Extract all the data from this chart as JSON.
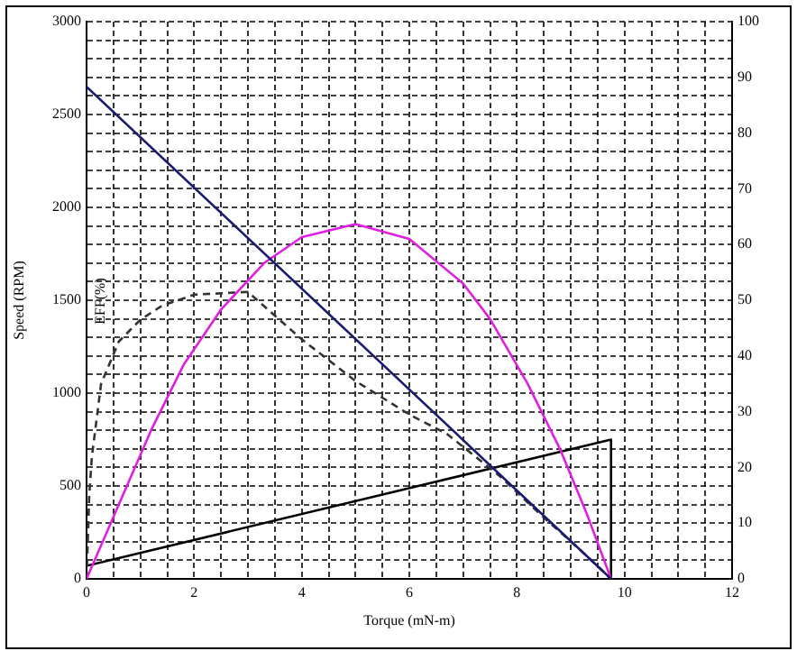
{
  "chart_data": {
    "type": "line",
    "xlabel": "Torque (mN-m)",
    "ylabel": "Speed (RPM)",
    "annotations": [
      "EFF(%)"
    ],
    "xlim": [
      0,
      12
    ],
    "xticks": [
      0,
      {
        "value": 0.5,
        "label": null
      },
      {
        "value": 1,
        "label": null
      },
      {
        "value": 1.5,
        "label": null
      },
      2,
      {
        "value": 2.5,
        "label": null
      },
      {
        "value": 3,
        "label": null
      },
      {
        "value": 3.5,
        "label": null
      },
      4,
      {
        "value": 4.5,
        "label": null
      },
      {
        "value": 5,
        "label": null
      },
      {
        "value": 5.5,
        "label": null
      },
      6,
      {
        "value": 6.5,
        "label": null
      },
      {
        "value": 7,
        "label": null
      },
      {
        "value": 7.5,
        "label": null
      },
      8,
      {
        "value": 8.5,
        "label": null
      },
      {
        "value": 9,
        "label": null
      },
      {
        "value": 9.5,
        "label": null
      },
      10,
      {
        "value": 10.5,
        "label": null
      },
      {
        "value": 11,
        "label": null
      },
      {
        "value": 11.5,
        "label": null
      },
      12
    ],
    "ylim": [
      0,
      3000
    ],
    "yticks": [
      0,
      {
        "value": 100,
        "label": null
      },
      {
        "value": 200,
        "label": null
      },
      {
        "value": 300,
        "label": null
      },
      {
        "value": 400,
        "label": null
      },
      500,
      {
        "value": 600,
        "label": null
      },
      {
        "value": 700,
        "label": null
      },
      {
        "value": 800,
        "label": null
      },
      {
        "value": 900,
        "label": null
      },
      1000,
      {
        "value": 1100,
        "label": null
      },
      {
        "value": 1200,
        "label": null
      },
      {
        "value": 1300,
        "label": null
      },
      {
        "value": 1400,
        "label": null
      },
      1500,
      {
        "value": 1600,
        "label": null
      },
      {
        "value": 1700,
        "label": null
      },
      {
        "value": 1800,
        "label": null
      },
      {
        "value": 1900,
        "label": null
      },
      2000,
      {
        "value": 2100,
        "label": null
      },
      {
        "value": 2200,
        "label": null
      },
      {
        "value": 2300,
        "label": null
      },
      {
        "value": 2400,
        "label": null
      },
      2500,
      {
        "value": 2600,
        "label": null
      },
      {
        "value": 2700,
        "label": null
      },
      {
        "value": 2800,
        "label": null
      },
      {
        "value": 2900,
        "label": null
      },
      3000
    ],
    "y2lim": [
      0,
      100
    ],
    "y2ticks": [
      0,
      10,
      20,
      30,
      40,
      50,
      60,
      70,
      80,
      90,
      100
    ],
    "grid": true,
    "marker": "none",
    "legend": false,
    "series": [
      {
        "color": "#1a1a6e",
        "x": [
          0,
          9.75
        ],
        "values": [
          2650,
          0
        ]
      },
      {
        "color": "#e020e0",
        "x": [
          0,
          0.6,
          1.2,
          1.8,
          2.5,
          3.3,
          4,
          5,
          6,
          7,
          7.5,
          8.2,
          8.8,
          9.3,
          9.75
        ],
        "values": [
          0,
          400,
          800,
          1150,
          1450,
          1700,
          1840,
          1910,
          1830,
          1590,
          1400,
          1050,
          700,
          350,
          0
        ]
      },
      {
        "color": "#333333",
        "axis": "y2",
        "line_style": "dashed",
        "x": [
          0,
          0.05,
          0.1,
          0.27,
          0.6,
          1,
          1.4,
          2,
          3,
          4,
          5,
          6,
          6.7,
          7.7,
          8.5,
          9.2,
          9.75
        ],
        "values": [
          0,
          15,
          22,
          35,
          42.6,
          46.5,
          49,
          51,
          51.5,
          43,
          35.5,
          29.5,
          26,
          18.3,
          11,
          5,
          0
        ]
      },
      {
        "color": "#000000",
        "x": [
          0,
          9.75,
          9.75
        ],
        "values": [
          70,
          750,
          0
        ]
      }
    ]
  }
}
